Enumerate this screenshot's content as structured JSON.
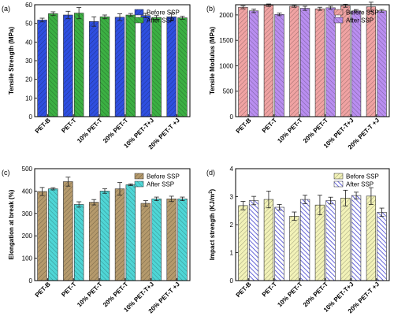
{
  "chart_data": [
    {
      "type": "bar",
      "panel_label": "(a)",
      "ylabel": "Tensile Strength (MPa)",
      "ylim": [
        0,
        60
      ],
      "yticks": [
        0,
        10,
        20,
        30,
        40,
        50,
        60
      ],
      "categories": [
        "PET-B",
        "PET-T",
        "10% PET-T",
        "20% PET-T",
        "10% PET-T+J",
        "20% PET-T +J"
      ],
      "legend_position": "top-right",
      "series": [
        {
          "name": "Before SSP",
          "color": "#2f4fe0",
          "values": [
            51.8,
            54.5,
            51.0,
            53.3,
            54.2,
            53.5
          ],
          "errors": [
            1.0,
            2.0,
            2.5,
            1.8,
            1.2,
            2.2
          ]
        },
        {
          "name": "After SSP",
          "color": "#3cb043",
          "values": [
            55.2,
            55.5,
            53.5,
            54.5,
            53.2,
            53.0
          ],
          "errors": [
            1.0,
            3.0,
            1.0,
            0.8,
            1.0,
            0.8
          ]
        }
      ]
    },
    {
      "type": "bar",
      "panel_label": "(b)",
      "ylabel": "Tensile Modulus (MPa)",
      "ylim": [
        0,
        2200
      ],
      "yticks": [
        0,
        500,
        1000,
        1500,
        2000
      ],
      "categories": [
        "PET-B",
        "PET-T",
        "10% PET-T",
        "20% PET-T",
        "10% PET-T+J",
        "20% PET-T +J"
      ],
      "legend_position": "top-right",
      "series": [
        {
          "name": "Before SSP",
          "color": "#f0a3a3",
          "values": [
            2150,
            2190,
            2170,
            2120,
            2180,
            2160
          ],
          "errors": [
            30,
            25,
            20,
            30,
            30,
            90
          ]
        },
        {
          "name": "After SSP",
          "color": "#b98ef0",
          "values": [
            2080,
            2010,
            2130,
            2140,
            2080,
            2080
          ],
          "errors": [
            35,
            25,
            40,
            30,
            25,
            25
          ]
        }
      ]
    },
    {
      "type": "bar",
      "panel_label": "(c)",
      "ylabel": "Elongation at break (%)",
      "ylim": [
        0,
        500
      ],
      "yticks": [
        0,
        100,
        200,
        300,
        400,
        500
      ],
      "categories": [
        "PET-B",
        "PET-T",
        "10% PET-T",
        "20% PET-T",
        "10% PET-T+J",
        "20% PET-T +J"
      ],
      "legend_position": "top-right",
      "series": [
        {
          "name": "Before SSP",
          "color": "#b59a6c",
          "values": [
            398,
            442,
            350,
            410,
            345,
            365
          ],
          "errors": [
            18,
            20,
            12,
            28,
            12,
            12
          ]
        },
        {
          "name": "After SSP",
          "color": "#4fd6d6",
          "values": [
            410,
            340,
            400,
            428,
            365,
            365
          ],
          "errors": [
            5,
            12,
            10,
            4,
            8,
            8
          ]
        }
      ]
    },
    {
      "type": "bar",
      "panel_label": "(d)",
      "ylabel": "Impact strength (KJ/m²)",
      "ylabel_main": "Impact strength (KJ/m",
      "ylabel_sup": "2",
      "ylabel_end": ")",
      "ylim": [
        0,
        4
      ],
      "yticks": [
        0,
        1,
        2,
        3,
        4
      ],
      "categories": [
        "PET-B",
        "PET-T",
        "10% PET-T",
        "20% PET-T",
        "10% PET-T+J",
        "20% PET-T +J"
      ],
      "legend_position": "top-right",
      "series": [
        {
          "name": "Before SSP",
          "color": "#f2f2b8",
          "values": [
            2.68,
            2.9,
            2.3,
            2.7,
            2.95,
            3.02
          ],
          "errors": [
            0.15,
            0.3,
            0.15,
            0.35,
            0.28,
            0.3
          ]
        },
        {
          "name": "After SSP",
          "color": "#3f3fcf",
          "values": [
            2.86,
            2.62,
            2.9,
            2.86,
            3.04,
            2.44
          ],
          "errors": [
            0.15,
            0.1,
            0.15,
            0.12,
            0.12,
            0.15
          ]
        }
      ]
    }
  ]
}
